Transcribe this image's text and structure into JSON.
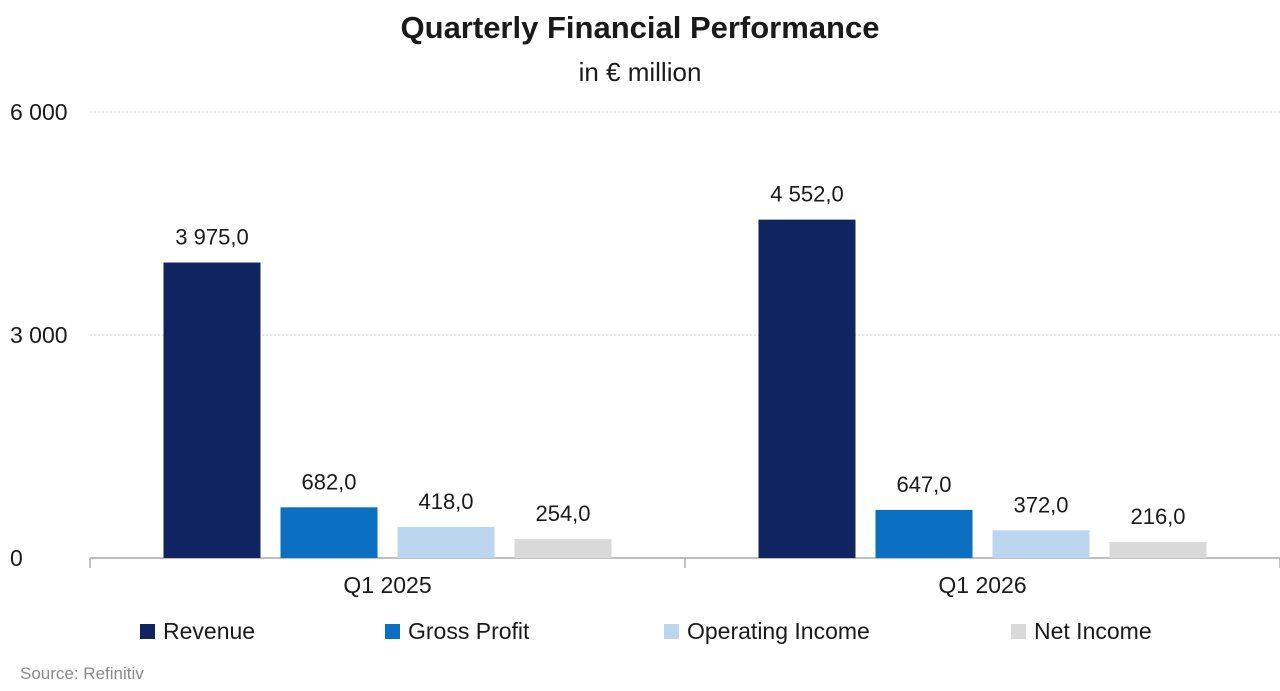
{
  "title": "Quarterly Financial Performance",
  "subtitle": "in € million",
  "source": "Source: Refinitiv",
  "colors": {
    "revenue": "#0f2461",
    "gross_profit": "#0b6fc2",
    "operating_income": "#bcd6f0",
    "net_income": "#d9d9d9",
    "gridline": "#d0d0d0",
    "axis": "#999999"
  },
  "chart_data": {
    "type": "bar",
    "title": "Quarterly Financial Performance",
    "subtitle": "in € million",
    "categories": [
      "Q1 2025",
      "Q1 2026"
    ],
    "series": [
      {
        "name": "Revenue",
        "values": [
          3975.0,
          4552.0
        ],
        "labels": [
          "3 975,0",
          "4 552,0"
        ],
        "color": "#0f2461"
      },
      {
        "name": "Gross Profit",
        "values": [
          682.0,
          647.0
        ],
        "labels": [
          "682,0",
          "647,0"
        ],
        "color": "#0b6fc2"
      },
      {
        "name": "Operating Income",
        "values": [
          418.0,
          372.0
        ],
        "labels": [
          "418,0",
          "372,0"
        ],
        "color": "#bcd6f0"
      },
      {
        "name": "Net Income",
        "values": [
          254.0,
          216.0
        ],
        "labels": [
          "254,0",
          "216,0"
        ],
        "color": "#d9d9d9"
      }
    ],
    "yticks": [
      0,
      3000,
      6000
    ],
    "ytick_labels": [
      "0",
      "3 000",
      "6 000"
    ],
    "ylim": [
      0,
      6000
    ],
    "grid": true,
    "legend_position": "bottom"
  }
}
